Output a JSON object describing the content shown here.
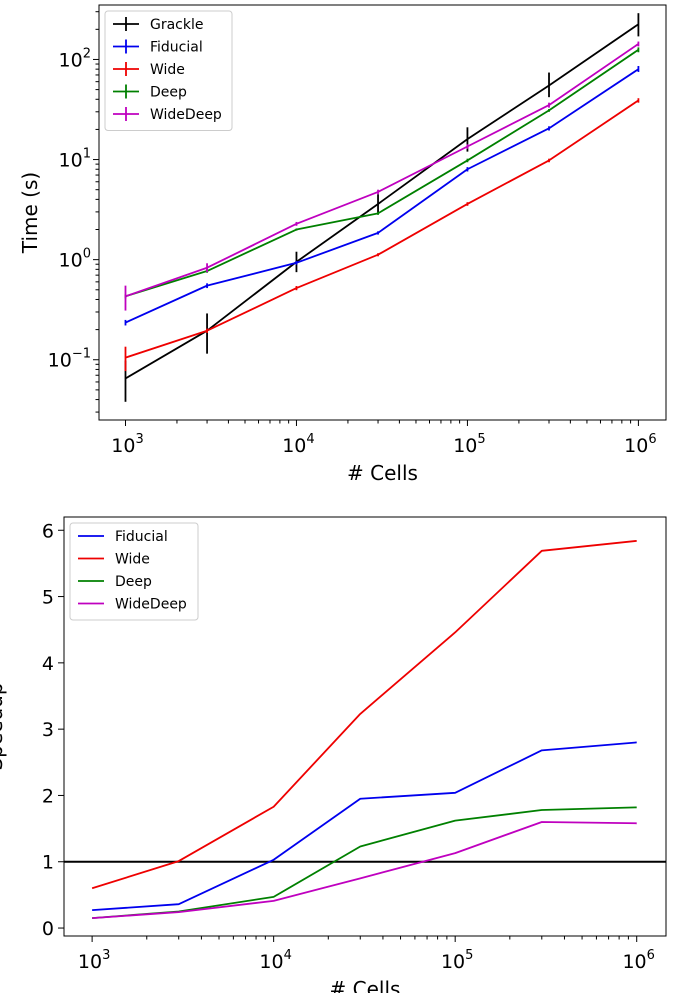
{
  "chart_data": [
    {
      "type": "line",
      "xscale": "log",
      "yscale": "log",
      "xlabel": "# Cells",
      "ylabel": "Time (s)",
      "xlim": [
        700,
        1450000
      ],
      "ylim": [
        0.025,
        350
      ],
      "xticks": [
        {
          "value": 1000,
          "base": "10",
          "exp": "3"
        },
        {
          "value": 10000,
          "base": "10",
          "exp": "4"
        },
        {
          "value": 100000,
          "base": "10",
          "exp": "5"
        },
        {
          "value": 1000000,
          "base": "10",
          "exp": "6"
        }
      ],
      "yticks": [
        {
          "value": 0.1,
          "base": "10",
          "exp": "−1"
        },
        {
          "value": 1,
          "base": "10",
          "exp": "0"
        },
        {
          "value": 10,
          "base": "10",
          "exp": "1"
        },
        {
          "value": 100,
          "base": "10",
          "exp": "2"
        }
      ],
      "legend_position": "top-left",
      "errorbars": true,
      "x": [
        1000,
        3000,
        10000,
        30000,
        100000,
        300000,
        1000000
      ],
      "series": [
        {
          "name": "Grackle",
          "color": "#000000",
          "values": [
            0.065,
            0.195,
            0.95,
            3.6,
            16,
            55,
            225
          ],
          "err_lo": [
            0.038,
            0.115,
            0.75,
            2.9,
            12,
            42,
            170
          ],
          "err_hi": [
            0.098,
            0.29,
            1.2,
            4.5,
            21,
            74,
            290
          ]
        },
        {
          "name": "Fiducial",
          "color": "#0000ee",
          "values": [
            0.235,
            0.55,
            0.93,
            1.85,
            8,
            20.5,
            80
          ],
          "err_lo": [
            0.22,
            0.52,
            0.89,
            1.78,
            7.6,
            19.5,
            75
          ],
          "err_hi": [
            0.25,
            0.58,
            0.97,
            1.92,
            8.4,
            21.5,
            86
          ]
        },
        {
          "name": "Wide",
          "color": "#ee0000",
          "values": [
            0.105,
            0.195,
            0.52,
            1.12,
            3.6,
            9.8,
            39
          ],
          "err_lo": [
            0.077,
            0.185,
            0.495,
            1.08,
            3.45,
            9.4,
            37
          ],
          "err_hi": [
            0.135,
            0.205,
            0.545,
            1.16,
            3.75,
            10.2,
            41
          ]
        },
        {
          "name": "Deep",
          "color": "#008000",
          "values": [
            0.43,
            0.77,
            2.0,
            2.9,
            9.8,
            31,
            125
          ],
          "err_lo": [
            0.41,
            0.74,
            1.95,
            2.8,
            9.4,
            30,
            118
          ],
          "err_hi": [
            0.45,
            0.8,
            2.05,
            3.0,
            10.2,
            32,
            132
          ]
        },
        {
          "name": "WideDeep",
          "color": "#bf00bf",
          "values": [
            0.43,
            0.83,
            2.28,
            4.75,
            13.5,
            35,
            143
          ],
          "err_lo": [
            0.31,
            0.75,
            2.18,
            4.5,
            12.8,
            33,
            135
          ],
          "err_hi": [
            0.55,
            0.92,
            2.38,
            5.0,
            14.2,
            37,
            151
          ]
        }
      ]
    },
    {
      "type": "line",
      "xscale": "log",
      "yscale": "linear",
      "xlabel": "# Cells",
      "ylabel": "Speedup",
      "xlim": [
        700,
        1450000
      ],
      "ylim": [
        -0.12,
        6.2
      ],
      "xticks": [
        {
          "value": 1000,
          "base": "10",
          "exp": "3"
        },
        {
          "value": 10000,
          "base": "10",
          "exp": "4"
        },
        {
          "value": 100000,
          "base": "10",
          "exp": "5"
        },
        {
          "value": 1000000,
          "base": "10",
          "exp": "6"
        }
      ],
      "yticks": [
        "0",
        "1",
        "2",
        "3",
        "4",
        "5",
        "6"
      ],
      "legend_position": "top-left",
      "reference_line": {
        "y": 1,
        "color": "#000000"
      },
      "x": [
        1000,
        3000,
        10000,
        30000,
        100000,
        300000,
        1000000
      ],
      "series": [
        {
          "name": "Fiducial",
          "color": "#0000ee",
          "values": [
            0.27,
            0.36,
            1.03,
            1.95,
            2.04,
            2.68,
            2.8
          ]
        },
        {
          "name": "Wide",
          "color": "#ee0000",
          "values": [
            0.6,
            1.01,
            1.83,
            3.23,
            4.46,
            5.69,
            5.84
          ]
        },
        {
          "name": "Deep",
          "color": "#008000",
          "values": [
            0.15,
            0.25,
            0.47,
            1.23,
            1.62,
            1.78,
            1.82
          ]
        },
        {
          "name": "WideDeep",
          "color": "#bf00bf",
          "values": [
            0.15,
            0.24,
            0.41,
            0.75,
            1.13,
            1.6,
            1.58
          ]
        }
      ]
    }
  ]
}
